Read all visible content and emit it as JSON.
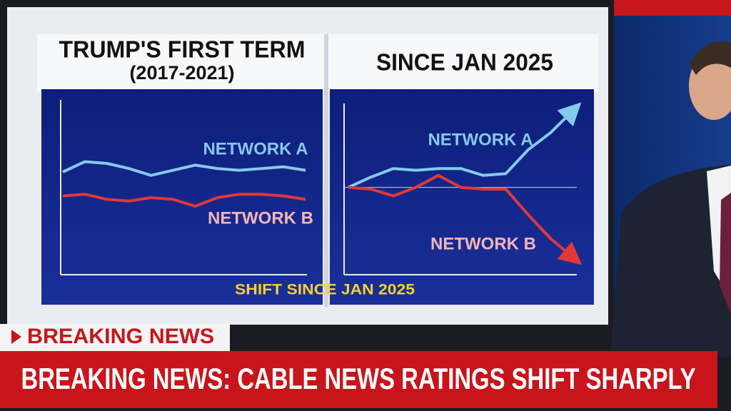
{
  "chart_data": [
    {
      "type": "line",
      "title": "TRUMP'S FIRST TERM",
      "subtitle": "(2017-2021)",
      "categories": [
        null,
        null,
        null,
        null,
        null,
        null,
        null,
        null,
        null,
        null,
        null,
        null
      ],
      "series": [
        {
          "name": "NETWORK A",
          "color": "#86c9ea",
          "values": [
            60,
            66,
            65,
            62,
            58,
            61,
            64,
            62,
            61,
            62,
            63,
            61
          ]
        },
        {
          "name": "NETWORK B",
          "color": "#e0383a",
          "values": [
            46,
            47,
            44,
            43,
            45,
            44,
            40,
            45,
            47,
            47,
            46,
            44
          ]
        }
      ],
      "ylim": [
        0,
        100
      ]
    },
    {
      "type": "line",
      "title": "SINCE JAN 2025",
      "categories": [
        null,
        null,
        null,
        null,
        null,
        null,
        null,
        null,
        null,
        null,
        null
      ],
      "series": [
        {
          "name": "NETWORK A",
          "color": "#86c9ea",
          "values": [
            51,
            57,
            62,
            61,
            62,
            62,
            58,
            59,
            73,
            83,
            96
          ]
        },
        {
          "name": "NETWORK B",
          "color": "#e0383a",
          "values": [
            51,
            50,
            46,
            51,
            58,
            51,
            50,
            50,
            35,
            21,
            10
          ]
        }
      ],
      "reference_line": 51,
      "ylim": [
        0,
        100
      ]
    }
  ],
  "caption": "SHIFT SINCE JAN 2025",
  "lower_third": {
    "tag": "BREAKING NEWS",
    "headline": "BREAKING NEWS: CABLE NEWS RATINGS SHIFT SHARPLY"
  }
}
